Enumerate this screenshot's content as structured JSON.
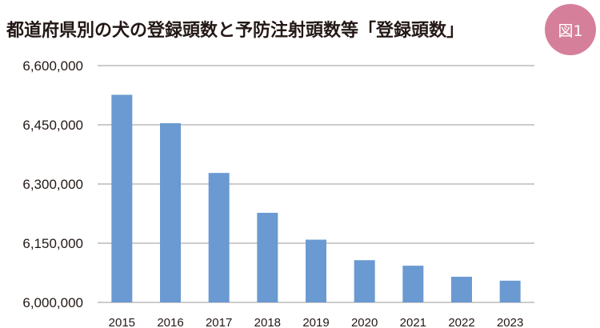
{
  "title": "都道府県別の犬の登録頭数と予防注射頭数等「登録頭数」",
  "badge": "図1",
  "colors": {
    "bar": "#6a9ad1",
    "grid": "#9a9a9a",
    "badge": "#d67f9b",
    "text": "#231815"
  },
  "chart_data": {
    "type": "bar",
    "categories": [
      "2015",
      "2016",
      "2017",
      "2018",
      "2019",
      "2020",
      "2021",
      "2022",
      "2023"
    ],
    "values": [
      6526000,
      6454000,
      6328000,
      6227000,
      6159000,
      6107000,
      6093000,
      6065000,
      6055000
    ],
    "ylim": [
      6000000,
      6600000
    ],
    "yticks": [
      6000000,
      6150000,
      6300000,
      6450000,
      6600000
    ],
    "ytick_labels": [
      "6,000,000",
      "6,150,000",
      "6,300,000",
      "6,450,000",
      "6,600,000"
    ],
    "grid": true,
    "legend": "none"
  }
}
